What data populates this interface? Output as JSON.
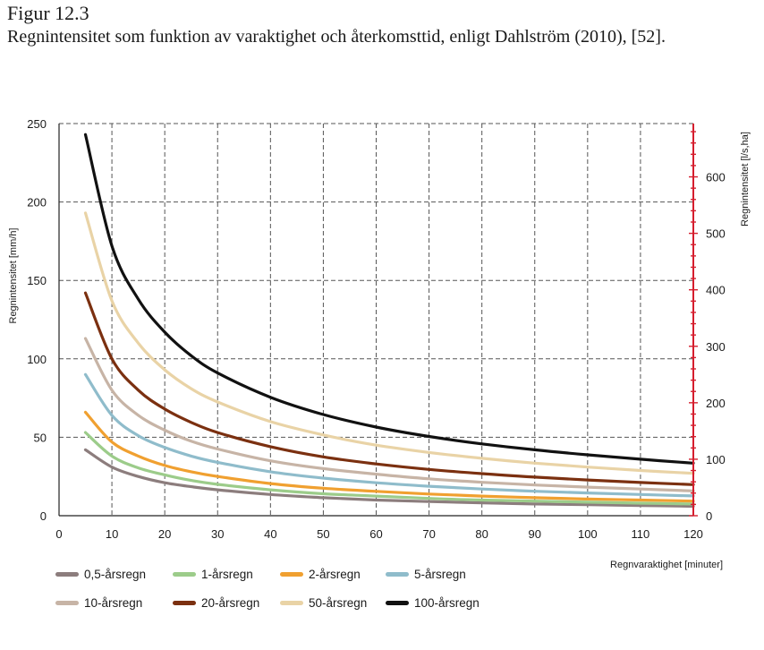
{
  "figure": {
    "number": "Figur 12.3",
    "caption": "Regnintensitet som funktion av varaktighet och återkomsttid, enligt Dahlström (2010), [52]."
  },
  "chart_data": {
    "type": "line",
    "xlabel": "Regnvaraktighet [minuter]",
    "ylabel": "Regnintensitet [mm/h]",
    "y2label": "Regnintensitet [l/s,ha]",
    "xlim": [
      0,
      120
    ],
    "ylim": [
      0,
      250
    ],
    "y2lim": [
      0,
      694.4
    ],
    "xticks": [
      0,
      10,
      20,
      30,
      40,
      50,
      60,
      70,
      80,
      90,
      100,
      110,
      120
    ],
    "yticks": [
      0,
      50,
      100,
      150,
      200,
      250
    ],
    "y2ticks": [
      0,
      100,
      200,
      300,
      400,
      500,
      600
    ],
    "grid": true,
    "grid_style": "dashed",
    "legend_position": "bottom",
    "x": [
      5,
      10,
      15,
      20,
      25,
      30,
      40,
      50,
      60,
      70,
      80,
      90,
      100,
      110,
      120
    ],
    "series": [
      {
        "name": "0,5-årsregn",
        "color": "#8c7d7d",
        "values": [
          42,
          31,
          25,
          21,
          18.5,
          16.5,
          13.5,
          11.5,
          10,
          9,
          8.2,
          7.5,
          7,
          6.5,
          6
        ]
      },
      {
        "name": "1-årsregn",
        "color": "#9ccc8a",
        "values": [
          53,
          38,
          30.5,
          26,
          22.5,
          20,
          16.5,
          14,
          12.5,
          11,
          10,
          9.3,
          8.6,
          8,
          7.5
        ]
      },
      {
        "name": "2-årsregn",
        "color": "#f0a030",
        "values": [
          66,
          47,
          38,
          32,
          28,
          25,
          20.5,
          17.5,
          15.5,
          13.8,
          12.5,
          11.5,
          10.6,
          10,
          9.3
        ]
      },
      {
        "name": "5-årsregn",
        "color": "#8fbccb",
        "values": [
          90,
          64,
          51,
          43.5,
          38,
          34,
          28,
          24,
          21,
          18.8,
          17,
          15.6,
          14.5,
          13.5,
          12.6
        ]
      },
      {
        "name": "10-årsregn",
        "color": "#c7b4a6",
        "values": [
          113,
          80,
          64,
          54.5,
          47.5,
          42.5,
          35,
          30,
          26.5,
          23.5,
          21.3,
          19.6,
          18.2,
          17,
          15.8
        ]
      },
      {
        "name": "20-årsregn",
        "color": "#7b3010",
        "values": [
          142,
          100,
          80,
          68,
          59.5,
          53,
          44,
          37.5,
          33,
          29.5,
          26.8,
          24.6,
          22.8,
          21.2,
          19.8
        ]
      },
      {
        "name": "50-årsregn",
        "color": "#e9d3a6",
        "values": [
          193,
          137,
          110,
          93,
          81,
          72.5,
          60,
          51.5,
          45,
          40.3,
          36.6,
          33.5,
          31,
          28.8,
          27
        ]
      },
      {
        "name": "100-årsregn",
        "color": "#111111",
        "values": [
          243,
          172,
          138,
          117,
          102,
          91,
          75.5,
          64.5,
          56.5,
          50.5,
          45.8,
          42,
          38.8,
          36,
          33.5
        ]
      }
    ]
  }
}
